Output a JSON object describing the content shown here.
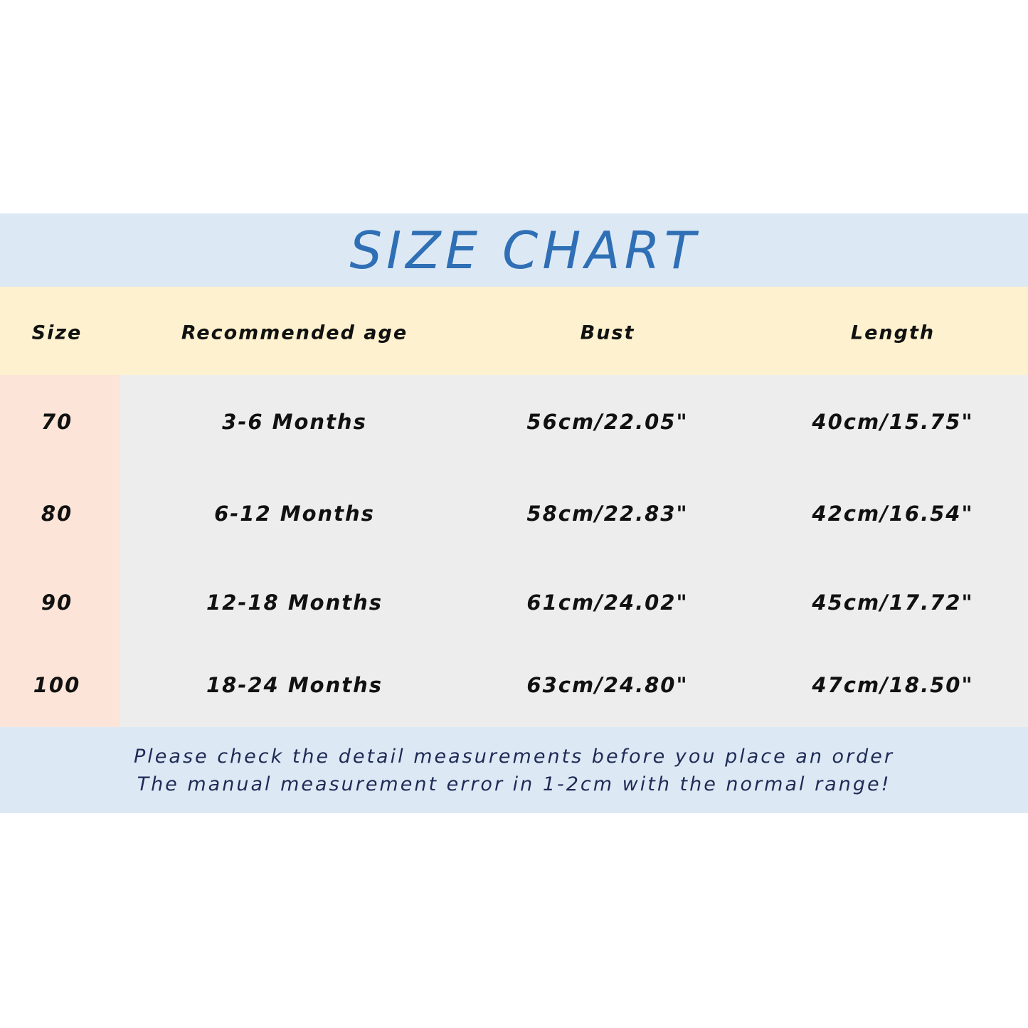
{
  "title": "SIZE CHART",
  "columns": [
    "Size",
    "Recommended age",
    "Bust",
    "Length"
  ],
  "rows": [
    [
      "70",
      "3-6 Months",
      "56cm/22.05\"",
      "40cm/15.75\""
    ],
    [
      "80",
      "6-12 Months",
      "58cm/22.83\"",
      "42cm/16.54\""
    ],
    [
      "90",
      "12-18 Months",
      "61cm/24.02\"",
      "45cm/17.72\""
    ],
    [
      "100",
      "18-24 Months",
      "63cm/24.80\"",
      "47cm/18.50\""
    ]
  ],
  "notes": [
    "Please check the detail measurements before you place an order",
    "The manual measurement error in 1-2cm with the normal range!"
  ],
  "colors": {
    "title": "#2f6fb5",
    "title_band": "#dce9f5",
    "header_band": "#fdf1cf",
    "size_column": "#fce4d8",
    "body": "#ededed"
  }
}
